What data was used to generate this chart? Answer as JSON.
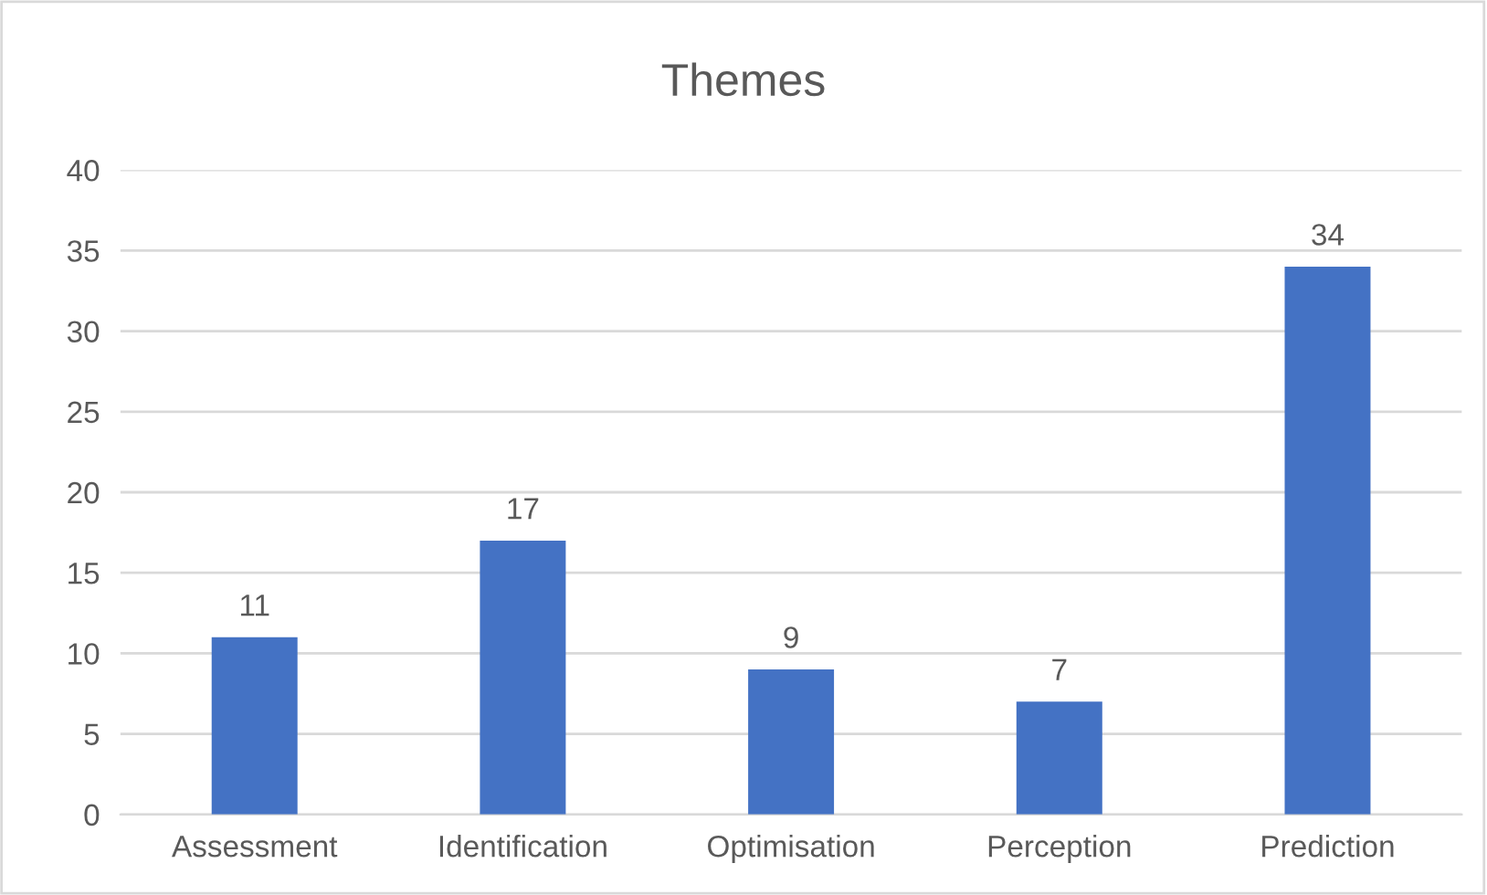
{
  "chart_data": {
    "type": "bar",
    "title": "Themes",
    "categories": [
      "Assessment",
      "Identification",
      "Optimisation",
      "Perception",
      "Prediction"
    ],
    "values": [
      11,
      17,
      9,
      7,
      34
    ],
    "color": "#4472c4",
    "ylim": [
      0,
      40
    ],
    "yticks": [
      0,
      5,
      10,
      15,
      20,
      25,
      30,
      35,
      40
    ],
    "grid": "y",
    "data_labels": true
  }
}
